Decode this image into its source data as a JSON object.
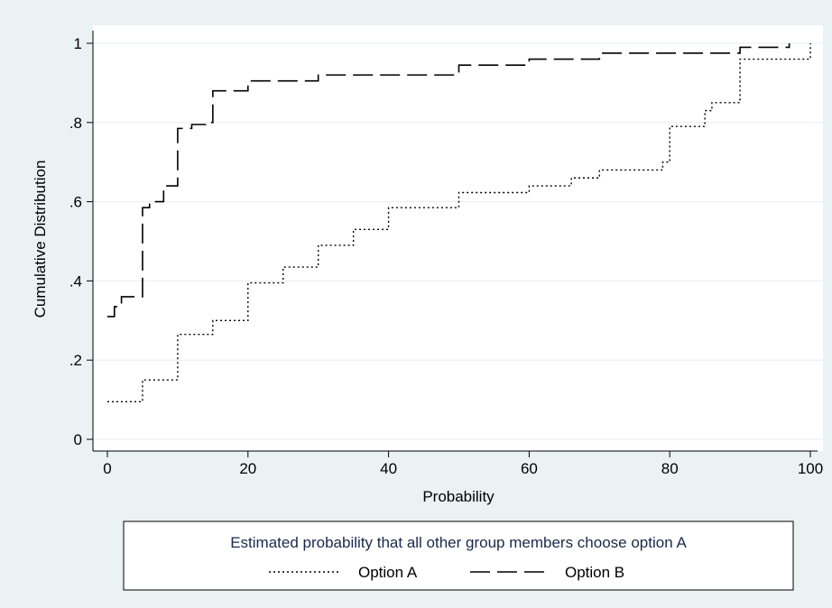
{
  "chart_data": {
    "type": "line",
    "xlabel": "Probability",
    "ylabel": "Cumulative Distribution",
    "xlim": [
      0,
      100
    ],
    "ylim": [
      0,
      1
    ],
    "x_ticks": [
      0,
      20,
      40,
      60,
      80,
      100
    ],
    "x_tick_labels": [
      "0",
      "20",
      "40",
      "60",
      "80",
      "100"
    ],
    "y_ticks": [
      0,
      0.2,
      0.4,
      0.6,
      0.8,
      1
    ],
    "y_tick_labels": [
      "0",
      ".2",
      ".4",
      ".6",
      ".8",
      "1"
    ],
    "grid": true,
    "legend": {
      "title": "Estimated probability that all other group members choose option A",
      "placement": "bottom"
    },
    "series": [
      {
        "name": "Option A",
        "style": "dotted",
        "step": true,
        "x": [
          0,
          5,
          10,
          15,
          20,
          25,
          30,
          35,
          40,
          50,
          60,
          66,
          70,
          79,
          80,
          85,
          86,
          90,
          100
        ],
        "y": [
          0.095,
          0.15,
          0.265,
          0.3,
          0.395,
          0.435,
          0.49,
          0.53,
          0.585,
          0.623,
          0.64,
          0.66,
          0.68,
          0.7,
          0.79,
          0.83,
          0.85,
          0.96,
          1.0
        ]
      },
      {
        "name": "Option B",
        "style": "dashed",
        "step": true,
        "x": [
          0,
          1,
          2,
          5,
          6,
          8,
          10,
          12,
          14,
          15,
          20,
          30,
          50,
          60,
          70,
          90,
          97
        ],
        "y": [
          0.31,
          0.335,
          0.36,
          0.585,
          0.6,
          0.64,
          0.785,
          0.795,
          0.8,
          0.88,
          0.905,
          0.92,
          0.945,
          0.96,
          0.975,
          0.99,
          1.0
        ]
      }
    ]
  }
}
